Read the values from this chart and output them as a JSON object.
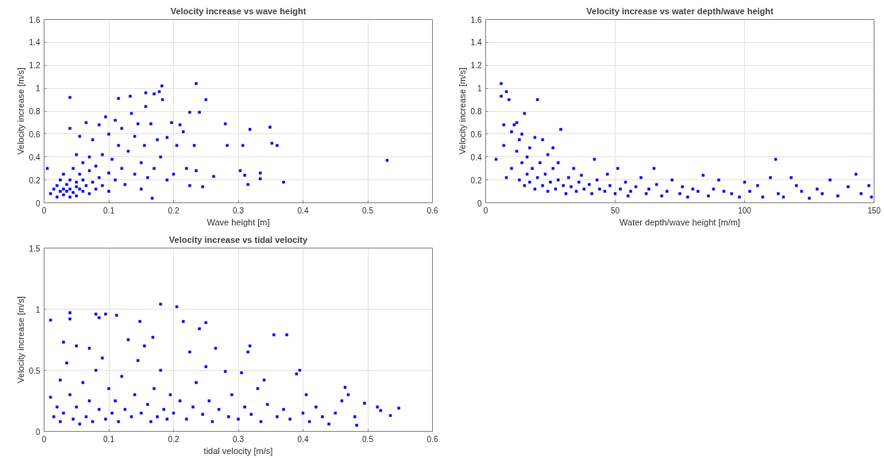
{
  "chart_data": [
    {
      "type": "scatter",
      "title": "Velocity increase vs wave height",
      "xlabel": "Wave height [m]",
      "ylabel": "Velocity increase [m/s]",
      "xlim": [
        0,
        0.6
      ],
      "ylim": [
        0,
        1.6
      ],
      "xticks": [
        0,
        0.1,
        0.2,
        0.3,
        0.4,
        0.5,
        0.6
      ],
      "yticks": [
        0,
        0.2,
        0.4,
        0.6,
        0.8,
        1,
        1.2,
        1.4,
        1.6
      ],
      "grid": true,
      "marker": "square",
      "series": [
        {
          "color": "#0000ff",
          "x": [
            0.005,
            0.01,
            0.015,
            0.02,
            0.02,
            0.025,
            0.025,
            0.03,
            0.03,
            0.03,
            0.035,
            0.035,
            0.04,
            0.04,
            0.04,
            0.04,
            0.04,
            0.045,
            0.045,
            0.05,
            0.05,
            0.05,
            0.05,
            0.055,
            0.055,
            0.055,
            0.06,
            0.06,
            0.06,
            0.065,
            0.065,
            0.07,
            0.07,
            0.07,
            0.075,
            0.075,
            0.08,
            0.08,
            0.085,
            0.085,
            0.09,
            0.09,
            0.095,
            0.1,
            0.1,
            0.1,
            0.105,
            0.11,
            0.11,
            0.115,
            0.115,
            0.12,
            0.12,
            0.125,
            0.13,
            0.133,
            0.135,
            0.14,
            0.14,
            0.145,
            0.15,
            0.15,
            0.155,
            0.157,
            0.157,
            0.16,
            0.165,
            0.167,
            0.17,
            0.17,
            0.175,
            0.178,
            0.18,
            0.182,
            0.183,
            0.19,
            0.19,
            0.197,
            0.2,
            0.205,
            0.21,
            0.215,
            0.22,
            0.225,
            0.225,
            0.232,
            0.235,
            0.235,
            0.24,
            0.245,
            0.25,
            0.262,
            0.28,
            0.283,
            0.303,
            0.307,
            0.31,
            0.315,
            0.318,
            0.334,
            0.334,
            0.349,
            0.352,
            0.36,
            0.37,
            0.53
          ],
          "values": [
            0.3,
            0.08,
            0.12,
            0.05,
            0.15,
            0.1,
            0.2,
            0.07,
            0.12,
            0.25,
            0.1,
            0.16,
            0.05,
            0.12,
            0.2,
            0.92,
            0.65,
            0.09,
            0.3,
            0.14,
            0.18,
            0.06,
            0.42,
            0.12,
            0.25,
            0.58,
            0.1,
            0.2,
            0.35,
            0.15,
            0.7,
            0.08,
            0.28,
            0.4,
            0.18,
            0.55,
            0.12,
            0.32,
            0.22,
            0.68,
            0.15,
            0.42,
            0.75,
            0.26,
            0.6,
            0.1,
            0.38,
            0.72,
            0.2,
            0.91,
            0.5,
            0.3,
            0.65,
            0.16,
            0.45,
            0.93,
            0.78,
            0.25,
            0.58,
            0.69,
            0.12,
            0.35,
            0.5,
            0.96,
            0.84,
            0.22,
            0.69,
            0.04,
            0.3,
            0.95,
            0.55,
            0.97,
            0.4,
            1.02,
            0.9,
            0.2,
            0.57,
            0.7,
            0.25,
            0.5,
            0.68,
            0.62,
            0.3,
            0.79,
            0.15,
            0.5,
            1.04,
            0.28,
            0.79,
            0.14,
            0.9,
            0.23,
            0.69,
            0.5,
            0.28,
            0.5,
            0.24,
            0.16,
            0.64,
            0.26,
            0.21,
            0.66,
            0.52,
            0.5,
            0.18,
            0.37
          ]
        }
      ]
    },
    {
      "type": "scatter",
      "title": "Velocity increase vs water depth/wave height",
      "xlabel": "Water depth/wave height [m/m]",
      "ylabel": "Velocity increase [m/s]",
      "xlim": [
        0,
        150
      ],
      "ylim": [
        0,
        1.6
      ],
      "xticks": [
        0,
        50,
        100,
        150
      ],
      "yticks": [
        0,
        0.2,
        0.4,
        0.6,
        0.8,
        1,
        1.2,
        1.4,
        1.6
      ],
      "grid": true,
      "marker": "square",
      "series": [
        {
          "color": "#0000ff",
          "x": [
            4,
            6,
            6,
            7,
            7,
            8,
            8,
            9,
            10,
            10,
            11,
            12,
            12,
            13,
            13,
            14,
            14,
            15,
            15,
            16,
            16,
            17,
            17,
            18,
            19,
            19,
            20,
            20,
            21,
            22,
            22,
            23,
            24,
            24,
            25,
            26,
            26,
            27,
            28,
            28,
            29,
            30,
            31,
            32,
            33,
            34,
            35,
            36,
            37,
            38,
            40,
            41,
            42,
            43,
            44,
            46,
            47,
            48,
            50,
            51,
            52,
            54,
            55,
            56,
            58,
            60,
            62,
            63,
            65,
            66,
            68,
            70,
            72,
            75,
            76,
            78,
            80,
            82,
            84,
            86,
            88,
            90,
            92,
            95,
            98,
            100,
            102,
            105,
            107,
            110,
            112,
            113,
            115,
            118,
            120,
            122,
            125,
            128,
            130,
            133,
            136,
            140,
            143,
            145,
            148,
            149
          ],
          "values": [
            0.38,
            1.04,
            0.93,
            0.5,
            0.68,
            0.97,
            0.22,
            0.9,
            0.62,
            0.3,
            0.68,
            0.7,
            0.45,
            0.2,
            0.55,
            0.6,
            0.35,
            0.78,
            0.15,
            0.4,
            0.25,
            0.48,
            0.18,
            0.3,
            0.12,
            0.57,
            0.22,
            0.9,
            0.35,
            0.15,
            0.55,
            0.25,
            0.1,
            0.42,
            0.18,
            0.3,
            0.48,
            0.12,
            0.2,
            0.35,
            0.64,
            0.15,
            0.08,
            0.22,
            0.14,
            0.3,
            0.1,
            0.18,
            0.24,
            0.12,
            0.16,
            0.08,
            0.38,
            0.2,
            0.12,
            0.1,
            0.25,
            0.15,
            0.08,
            0.3,
            0.12,
            0.18,
            0.06,
            0.1,
            0.14,
            0.22,
            0.08,
            0.12,
            0.3,
            0.16,
            0.06,
            0.1,
            0.2,
            0.08,
            0.14,
            0.05,
            0.12,
            0.1,
            0.24,
            0.06,
            0.12,
            0.2,
            0.1,
            0.08,
            0.05,
            0.18,
            0.1,
            0.15,
            0.05,
            0.22,
            0.38,
            0.08,
            0.05,
            0.22,
            0.15,
            0.1,
            0.04,
            0.12,
            0.08,
            0.2,
            0.06,
            0.14,
            0.25,
            0.08,
            0.15,
            0.05
          ]
        }
      ]
    },
    {
      "type": "scatter",
      "title": "Velocity increase vs tidal velocity",
      "xlabel": "tidal velocity [m/s]",
      "ylabel": "Velocity increase [m/s]",
      "xlim": [
        0,
        0.6
      ],
      "ylim": [
        0,
        1.5
      ],
      "xticks": [
        0,
        0.1,
        0.2,
        0.3,
        0.4,
        0.5,
        0.6
      ],
      "yticks": [
        0,
        0.5,
        1,
        1.5
      ],
      "grid": true,
      "marker": "square",
      "series": [
        {
          "color": "#0000ff",
          "x": [
            0.01,
            0.01,
            0.015,
            0.02,
            0.025,
            0.025,
            0.03,
            0.03,
            0.035,
            0.04,
            0.04,
            0.04,
            0.045,
            0.05,
            0.05,
            0.055,
            0.06,
            0.065,
            0.07,
            0.07,
            0.075,
            0.08,
            0.08,
            0.085,
            0.085,
            0.09,
            0.095,
            0.095,
            0.1,
            0.105,
            0.11,
            0.112,
            0.115,
            0.12,
            0.125,
            0.13,
            0.135,
            0.14,
            0.145,
            0.148,
            0.15,
            0.155,
            0.16,
            0.165,
            0.168,
            0.17,
            0.175,
            0.18,
            0.18,
            0.185,
            0.19,
            0.195,
            0.2,
            0.205,
            0.21,
            0.215,
            0.22,
            0.225,
            0.23,
            0.235,
            0.24,
            0.245,
            0.25,
            0.25,
            0.255,
            0.26,
            0.265,
            0.27,
            0.28,
            0.285,
            0.29,
            0.3,
            0.305,
            0.31,
            0.315,
            0.318,
            0.32,
            0.33,
            0.335,
            0.34,
            0.345,
            0.355,
            0.36,
            0.37,
            0.375,
            0.38,
            0.39,
            0.395,
            0.4,
            0.405,
            0.41,
            0.42,
            0.43,
            0.44,
            0.45,
            0.46,
            0.465,
            0.47,
            0.48,
            0.483,
            0.495,
            0.515,
            0.52,
            0.535,
            0.548
          ],
          "values": [
            0.91,
            0.28,
            0.12,
            0.2,
            0.08,
            0.42,
            0.73,
            0.15,
            0.56,
            0.97,
            0.92,
            0.3,
            0.1,
            0.7,
            0.2,
            0.06,
            0.4,
            0.12,
            0.68,
            0.25,
            0.08,
            0.96,
            0.5,
            0.93,
            0.18,
            0.6,
            0.1,
            0.96,
            0.35,
            0.15,
            0.25,
            0.95,
            0.08,
            0.45,
            0.18,
            0.75,
            0.12,
            0.3,
            0.58,
            0.9,
            0.15,
            0.7,
            0.22,
            0.08,
            0.77,
            0.35,
            0.12,
            1.04,
            0.5,
            0.18,
            0.1,
            0.3,
            0.15,
            1.02,
            0.25,
            0.9,
            0.1,
            0.65,
            0.2,
            0.4,
            0.84,
            0.14,
            0.89,
            0.53,
            0.25,
            0.08,
            0.68,
            0.18,
            0.49,
            0.12,
            0.3,
            0.1,
            0.48,
            0.2,
            0.65,
            0.7,
            0.14,
            0.35,
            0.08,
            0.42,
            0.22,
            0.79,
            0.12,
            0.18,
            0.79,
            0.1,
            0.47,
            0.5,
            0.15,
            0.3,
            0.08,
            0.2,
            0.12,
            0.06,
            0.15,
            0.25,
            0.36,
            0.3,
            0.12,
            0.05,
            0.23,
            0.2,
            0.17,
            0.13,
            0.19
          ]
        }
      ]
    }
  ]
}
